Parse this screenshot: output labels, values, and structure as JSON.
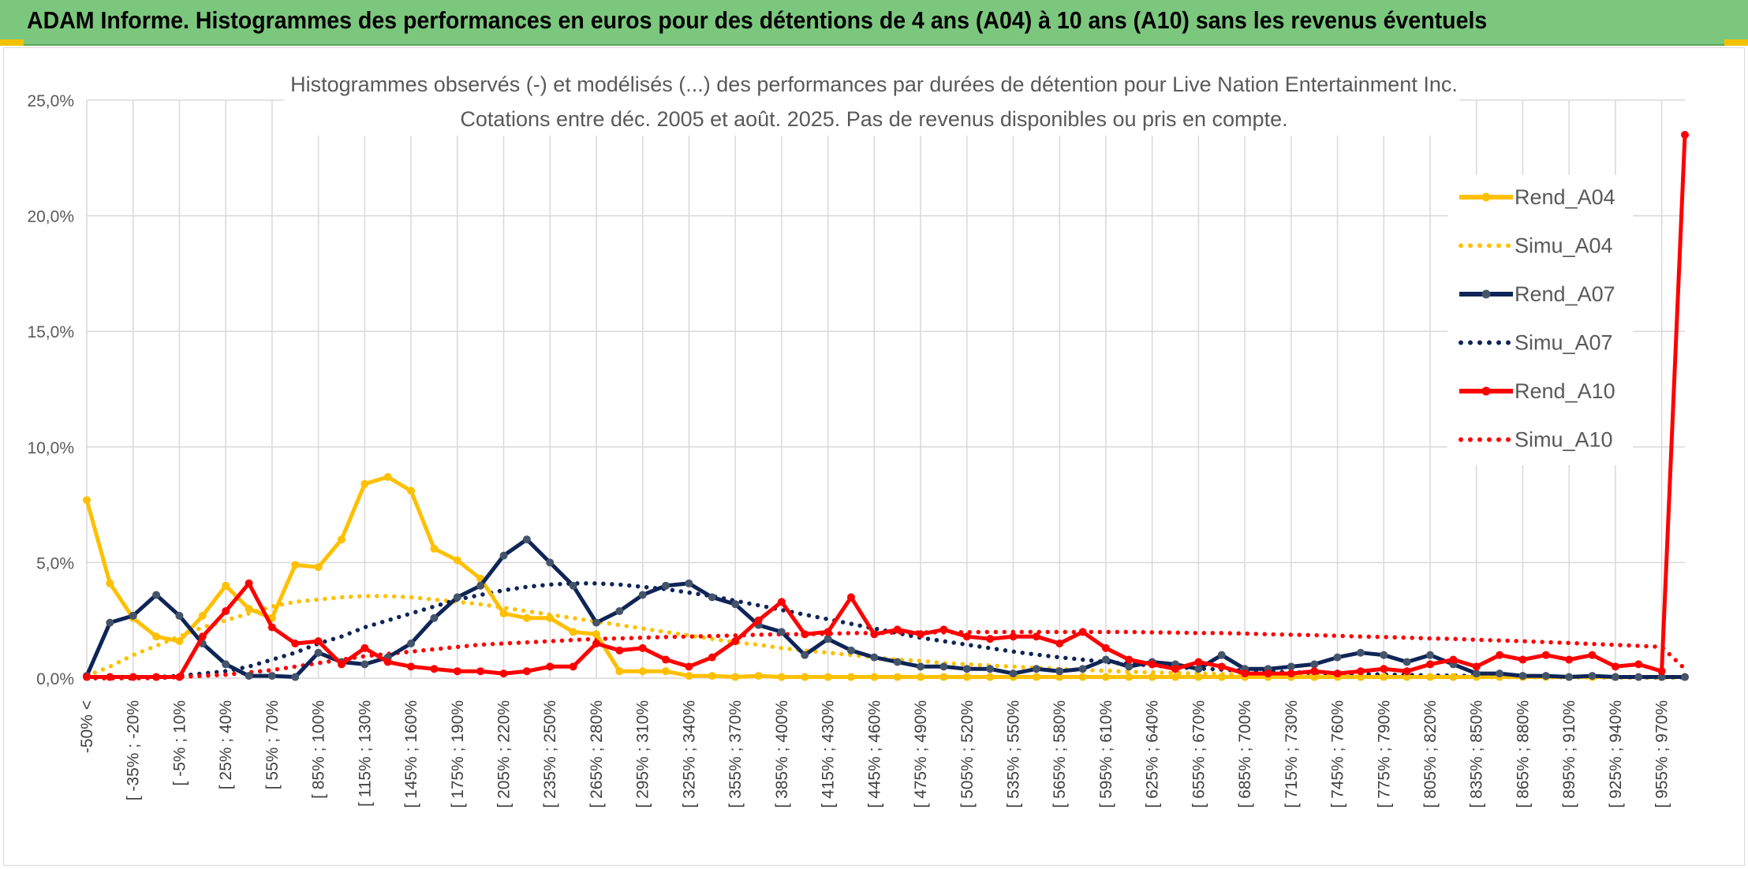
{
  "page": {
    "title": "ADAM Informe. Histogrammes des performances en euros pour des détentions de 4 ans (A04) à 10 ans (A10) sans les revenus éventuels"
  },
  "colors": {
    "A04": "#ffc000",
    "A07": "#0f2557",
    "A10": "#ff0000",
    "A07_marker": "#44546a",
    "grid": "#d9d9d9",
    "header": "#7cc77e"
  },
  "chart_data": {
    "type": "line",
    "title": "Histogrammes observés (-) et modélisés (...) des performances par durées de détention pour Live Nation Entertainment Inc.",
    "subtitle": "Cotations entre déc. 2005 et août. 2025. Pas de revenus disponibles ou pris en compte.",
    "ylim": [
      0,
      25
    ],
    "yticks": [
      "0,0%",
      "5,0%",
      "10,0%",
      "15,0%",
      "20,0%",
      "25,0%"
    ],
    "grid": true,
    "legend_position": "right",
    "tick_labels": [
      "-50% <",
      "[ -35% ; -20%",
      "[ -5% ; 10%",
      "[ 25% ; 40%",
      "[ 55% ; 70%",
      "[ 85% ; 100%",
      "[ 115% ; 130%",
      "[ 145% ; 160%",
      "[ 175% ; 190%",
      "[ 205% ; 220%",
      "[ 235% ; 250%",
      "[ 265% ; 280%",
      "[ 295% ; 310%",
      "[ 325% ; 340%",
      "[ 355% ; 370%",
      "[ 385% ; 400%",
      "[ 415% ; 430%",
      "[ 445% ; 460%",
      "[ 475% ; 490%",
      "[ 505% ; 520%",
      "[ 535% ; 550%",
      "[ 565% ; 580%",
      "[ 595% ; 610%",
      "[ 625% ; 640%",
      "[ 655% ; 670%",
      "[ 685% ; 700%",
      "[ 715% ; 730%",
      "[ 745% ; 760%",
      "[ 775% ; 790%",
      "[ 805% ; 820%",
      "[ 835% ; 850%",
      "[ 865% ; 880%",
      "[ 895% ; 910%",
      "[ 925% ; 940%",
      "[ 955% ; 970%"
    ],
    "series": [
      {
        "name": "Rend_A04",
        "style": "solid",
        "color": "#ffc000",
        "marker": "#ffc000",
        "values": [
          7.7,
          4.1,
          2.6,
          1.8,
          1.6,
          2.7,
          4.0,
          3.0,
          2.6,
          4.9,
          4.8,
          6.0,
          8.4,
          8.7,
          8.1,
          5.6,
          5.1,
          4.3,
          2.8,
          2.6,
          2.6,
          2.0,
          1.9,
          0.3,
          0.3,
          0.3,
          0.1,
          0.1,
          0.05,
          0.1,
          0.05,
          0.05,
          0.05,
          0.05,
          0.05,
          0.05,
          0.05,
          0.05,
          0.05,
          0.05,
          0.05,
          0.05,
          0.05,
          0.05,
          0.05,
          0.05,
          0.05,
          0.05,
          0.05,
          0.05,
          0.05,
          0.05,
          0.05,
          0.05,
          0.05,
          0.05,
          0.05,
          0.05,
          0.05,
          0.05,
          0.05,
          0.05,
          0.05,
          0.05,
          0.05,
          0.05,
          0.05,
          0.05,
          0.05,
          0.05
        ]
      },
      {
        "name": "Simu_A04",
        "style": "dotted",
        "color": "#ffc000",
        "values": [
          0.1,
          0.5,
          1.0,
          1.4,
          1.8,
          2.2,
          2.5,
          2.8,
          3.1,
          3.3,
          3.4,
          3.5,
          3.55,
          3.55,
          3.5,
          3.4,
          3.3,
          3.2,
          3.05,
          2.9,
          2.75,
          2.6,
          2.45,
          2.3,
          2.15,
          2.0,
          1.85,
          1.7,
          1.55,
          1.45,
          1.3,
          1.2,
          1.1,
          1.0,
          0.9,
          0.8,
          0.75,
          0.65,
          0.6,
          0.55,
          0.5,
          0.45,
          0.4,
          0.35,
          0.32,
          0.28,
          0.25,
          0.22,
          0.2,
          0.18,
          0.16,
          0.14,
          0.12,
          0.11,
          0.1,
          0.09,
          0.08,
          0.07,
          0.06,
          0.05,
          0.05,
          0.04,
          0.04,
          0.03,
          0.03,
          0.03,
          0.02,
          0.02,
          0.02,
          0.02
        ]
      },
      {
        "name": "Rend_A07",
        "style": "solid",
        "color": "#0f2557",
        "marker": "#44546a",
        "values": [
          0.1,
          2.4,
          2.7,
          3.6,
          2.7,
          1.5,
          0.6,
          0.1,
          0.1,
          0.05,
          1.1,
          0.7,
          0.6,
          0.9,
          1.5,
          2.6,
          3.5,
          4.0,
          5.3,
          6.0,
          5.0,
          4.0,
          2.4,
          2.9,
          3.6,
          4.0,
          4.1,
          3.5,
          3.2,
          2.3,
          2.0,
          1.0,
          1.7,
          1.2,
          0.9,
          0.7,
          0.5,
          0.5,
          0.4,
          0.4,
          0.2,
          0.4,
          0.3,
          0.4,
          0.8,
          0.5,
          0.7,
          0.6,
          0.4,
          1.0,
          0.4,
          0.4,
          0.5,
          0.6,
          0.9,
          1.1,
          1.0,
          0.7,
          1.0,
          0.6,
          0.2,
          0.2,
          0.1,
          0.1,
          0.05,
          0.1,
          0.05,
          0.05,
          0.05,
          0.05
        ]
      },
      {
        "name": "Simu_A07",
        "style": "dotted",
        "color": "#0f2557",
        "values": [
          0.0,
          0.0,
          0.0,
          0.05,
          0.1,
          0.2,
          0.3,
          0.5,
          0.8,
          1.1,
          1.5,
          1.8,
          2.2,
          2.5,
          2.8,
          3.1,
          3.4,
          3.6,
          3.8,
          3.95,
          4.05,
          4.1,
          4.1,
          4.05,
          3.95,
          3.85,
          3.7,
          3.55,
          3.35,
          3.15,
          2.95,
          2.75,
          2.55,
          2.35,
          2.15,
          1.95,
          1.75,
          1.6,
          1.45,
          1.3,
          1.15,
          1.02,
          0.9,
          0.8,
          0.7,
          0.62,
          0.55,
          0.48,
          0.42,
          0.37,
          0.33,
          0.29,
          0.26,
          0.23,
          0.2,
          0.18,
          0.16,
          0.14,
          0.12,
          0.11,
          0.1,
          0.09,
          0.08,
          0.07,
          0.06,
          0.05,
          0.05,
          0.04,
          0.04,
          0.04
        ]
      },
      {
        "name": "Rend_A10",
        "style": "solid",
        "color": "#ff0000",
        "marker": "#ff0000",
        "values": [
          0.05,
          0.05,
          0.05,
          0.05,
          0.05,
          1.8,
          2.9,
          4.1,
          2.2,
          1.5,
          1.6,
          0.6,
          1.3,
          0.7,
          0.5,
          0.4,
          0.3,
          0.3,
          0.2,
          0.3,
          0.5,
          0.5,
          1.5,
          1.2,
          1.3,
          0.8,
          0.5,
          0.9,
          1.6,
          2.5,
          3.3,
          1.9,
          2.0,
          3.5,
          1.9,
          2.1,
          1.9,
          2.1,
          1.8,
          1.7,
          1.8,
          1.8,
          1.5,
          2.0,
          1.3,
          0.8,
          0.6,
          0.4,
          0.7,
          0.5,
          0.2,
          0.2,
          0.2,
          0.3,
          0.2,
          0.3,
          0.4,
          0.3,
          0.6,
          0.8,
          0.5,
          1.0,
          0.8,
          1.0,
          0.8,
          1.0,
          0.5,
          0.6,
          0.3,
          23.5
        ]
      },
      {
        "name": "Simu_A10",
        "style": "dotted",
        "color": "#ff0000",
        "values": [
          0.0,
          0.0,
          0.0,
          0.0,
          0.05,
          0.1,
          0.15,
          0.25,
          0.35,
          0.5,
          0.65,
          0.8,
          0.95,
          1.05,
          1.15,
          1.25,
          1.35,
          1.45,
          1.5,
          1.55,
          1.6,
          1.65,
          1.7,
          1.72,
          1.75,
          1.78,
          1.8,
          1.82,
          1.85,
          1.88,
          1.9,
          1.9,
          1.92,
          1.95,
          1.95,
          1.97,
          1.98,
          1.98,
          1.99,
          2.0,
          2.0,
          2.0,
          2.0,
          2.0,
          2.0,
          2.0,
          1.98,
          1.97,
          1.95,
          1.95,
          1.93,
          1.9,
          1.88,
          1.86,
          1.83,
          1.8,
          1.78,
          1.75,
          1.72,
          1.7,
          1.66,
          1.63,
          1.6,
          1.56,
          1.52,
          1.48,
          1.44,
          1.4,
          1.35,
          0.4
        ]
      }
    ]
  }
}
